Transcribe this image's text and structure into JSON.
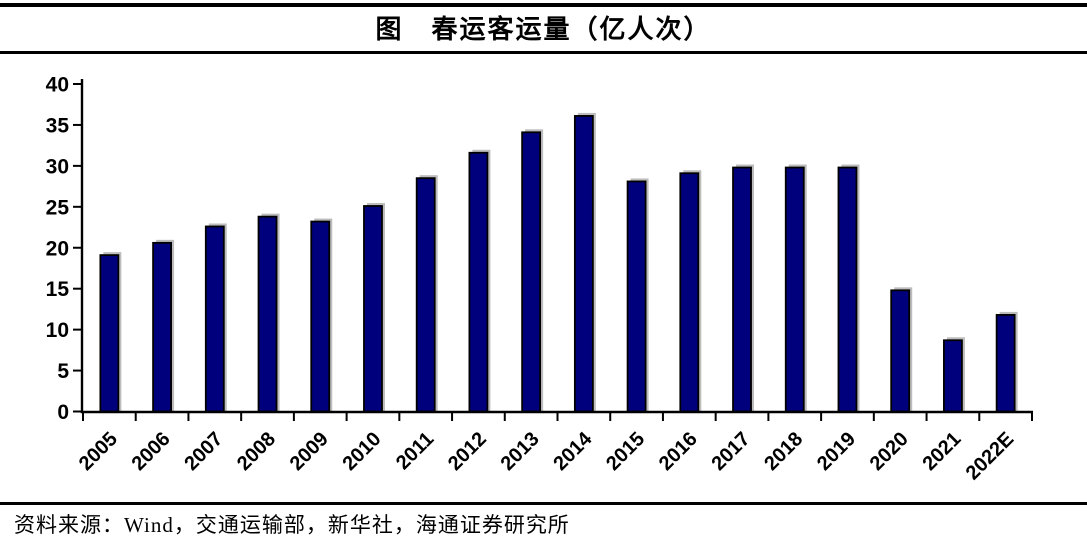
{
  "title": "图　春运客运量（亿人次）",
  "source": "资料来源：Wind，交通运输部，新华社，海通证券研究所",
  "chart_data": {
    "type": "bar",
    "title": "图 春运客运量（亿人次）",
    "unit": "亿人次",
    "categories": [
      "2005",
      "2006",
      "2007",
      "2008",
      "2009",
      "2010",
      "2011",
      "2012",
      "2013",
      "2014",
      "2015",
      "2016",
      "2017",
      "2018",
      "2019",
      "2020",
      "2021",
      "2022E"
    ],
    "values": [
      19.1,
      20.6,
      22.6,
      23.8,
      23.2,
      25.1,
      28.5,
      31.6,
      34.1,
      36.1,
      28.1,
      29.1,
      29.8,
      29.8,
      29.8,
      14.8,
      8.7,
      11.8
    ],
    "xlabel": "",
    "ylabel": "",
    "ylim": [
      0,
      40
    ],
    "ytick_interval": 5,
    "ytick_labels": [
      "0",
      "5",
      "10",
      "15",
      "20",
      "25",
      "30",
      "35",
      "40"
    ],
    "x_label_rotation_deg": 45,
    "grid": false,
    "legend": false,
    "bar_color": "#00007d",
    "bar_border_color": "#000000",
    "shadow_color": "#bdbdbd",
    "axis_color": "#000000",
    "text_color": "#000000"
  }
}
